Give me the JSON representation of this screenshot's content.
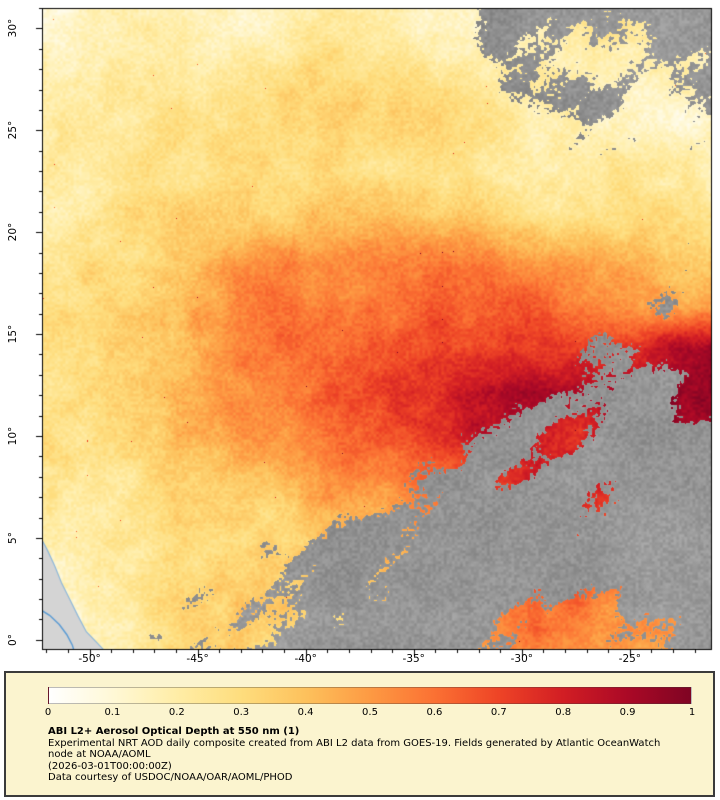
{
  "figure": {
    "lat_ticks": [
      {
        "value": 30,
        "label": "30°"
      },
      {
        "value": 25,
        "label": "25°"
      },
      {
        "value": 20,
        "label": "20°"
      },
      {
        "value": 15,
        "label": "15°"
      },
      {
        "value": 10,
        "label": "10°"
      },
      {
        "value": 5,
        "label": "5°"
      },
      {
        "value": 0,
        "label": "0°"
      }
    ],
    "lon_ticks": [
      {
        "value": -50,
        "label": "-50°"
      },
      {
        "value": -45,
        "label": "-45°"
      },
      {
        "value": -40,
        "label": "-40°"
      },
      {
        "value": -35,
        "label": "-35°"
      },
      {
        "value": -30,
        "label": "-30°"
      },
      {
        "value": -25,
        "label": "-25°"
      }
    ]
  },
  "legend": {
    "title": "ABI L2+ Aerosol Optical Depth at 550 nm (1)",
    "description": "Experimental NRT AOD daily composite created from ABI L2 data from GOES-19. Fields generated by Atlantic OceanWatch node at NOAA/AOML",
    "timestamp": "(2026-03-01T00:00:00Z)",
    "credit": "Data courtesy of USDOC/NOAA/OAR/AOML/PHOD",
    "colorbar_ticks": [
      "0",
      "0.1",
      "0.2",
      "0.3",
      "0.4",
      "0.5",
      "0.6",
      "0.7",
      "0.8",
      "0.9",
      "1"
    ],
    "panel_bg": "#fbf4cf",
    "panel_border": "#3b3b3b"
  },
  "chart_data": {
    "type": "heatmap",
    "title": "ABI L2+ Aerosol Optical Depth at 550 nm (1)",
    "lon_range": [
      -52.2,
      -21.2
    ],
    "lat_range": [
      -0.5,
      31
    ],
    "lon_tick_values": [
      -50,
      -45,
      -40,
      -35,
      -30,
      -25
    ],
    "lat_tick_values": [
      0,
      5,
      10,
      15,
      20,
      25,
      30
    ],
    "grid_orientation": "rows north-to-south, columns west-to-east",
    "colorbar": {
      "min": 0,
      "max": 1,
      "ticks": [
        0,
        0.1,
        0.2,
        0.3,
        0.4,
        0.5,
        0.6,
        0.7,
        0.8,
        0.9,
        1
      ],
      "stops": [
        {
          "value": 0.0,
          "color": "#ffffff"
        },
        {
          "value": 0.1,
          "color": "#fff8d6"
        },
        {
          "value": 0.2,
          "color": "#ffeda6"
        },
        {
          "value": 0.3,
          "color": "#fedd7d"
        },
        {
          "value": 0.4,
          "color": "#fdc15c"
        },
        {
          "value": 0.5,
          "color": "#fd9a43"
        },
        {
          "value": 0.6,
          "color": "#fb7133"
        },
        {
          "value": 0.7,
          "color": "#ee4426"
        },
        {
          "value": 0.8,
          "color": "#d21e24"
        },
        {
          "value": 0.9,
          "color": "#ab0926"
        },
        {
          "value": 1.0,
          "color": "#7f0423"
        }
      ]
    },
    "missing_color": "#969696",
    "land_color": "#d4d4d4",
    "coastline_color": "#8fb8da",
    "river_color": "#5a9bd4",
    "aod_grid": [
      [
        0.15,
        0.15,
        0.16,
        0.17,
        0.18,
        0.2,
        0.22,
        0.22,
        0.21,
        0.2,
        0.19,
        0.18,
        0.18,
        0.17,
        0.16,
        0.15
      ],
      [
        0.15,
        0.16,
        0.17,
        0.18,
        0.2,
        0.22,
        0.24,
        0.24,
        0.23,
        0.22,
        0.2,
        0.2,
        0.18,
        0.17,
        0.16,
        0.15
      ],
      [
        0.16,
        0.17,
        0.18,
        0.2,
        0.22,
        0.24,
        0.26,
        0.26,
        0.25,
        0.24,
        0.22,
        0.21,
        0.2,
        0.18,
        0.17,
        0.16
      ],
      [
        0.17,
        0.18,
        0.2,
        0.22,
        0.24,
        0.26,
        0.28,
        0.28,
        0.27,
        0.26,
        0.24,
        0.22,
        0.21,
        0.2,
        0.18,
        0.17
      ],
      [
        0.18,
        0.2,
        0.22,
        0.24,
        0.26,
        0.28,
        0.3,
        0.31,
        0.3,
        0.29,
        0.27,
        0.25,
        0.24,
        0.22,
        0.2,
        0.19
      ],
      [
        0.2,
        0.22,
        0.25,
        0.28,
        0.32,
        0.36,
        0.4,
        0.42,
        0.42,
        0.4,
        0.38,
        0.34,
        0.31,
        0.28,
        0.26,
        0.23
      ],
      [
        0.22,
        0.26,
        0.3,
        0.36,
        0.43,
        0.5,
        0.55,
        0.58,
        0.6,
        0.58,
        0.55,
        0.51,
        0.47,
        0.43,
        0.39,
        0.35
      ],
      [
        0.24,
        0.28,
        0.34,
        0.41,
        0.48,
        0.55,
        0.6,
        0.63,
        0.65,
        0.65,
        0.62,
        0.59,
        0.56,
        0.52,
        0.46,
        0.42
      ],
      [
        0.26,
        0.3,
        0.36,
        0.43,
        0.5,
        0.58,
        0.63,
        0.67,
        0.7,
        0.72,
        0.71,
        0.69,
        0.71,
        0.76,
        0.86,
        0.96
      ],
      [
        0.28,
        0.32,
        0.38,
        0.45,
        0.52,
        0.6,
        0.66,
        0.72,
        0.78,
        0.85,
        0.92,
        0.95,
        0.9,
        0.86,
        0.92,
        1.0
      ],
      [
        0.28,
        0.32,
        0.38,
        0.44,
        0.5,
        0.56,
        0.62,
        0.68,
        0.75,
        0.8,
        0.85,
        0.81,
        0.76,
        0.8,
        0.86,
        0.92
      ],
      [
        0.26,
        0.3,
        0.34,
        0.38,
        0.42,
        0.46,
        0.51,
        0.56,
        0.61,
        0.66,
        0.71,
        0.76,
        0.8,
        0.76,
        0.71,
        0.76
      ],
      [
        0.22,
        0.25,
        0.3,
        0.34,
        0.38,
        0.41,
        0.44,
        0.48,
        0.51,
        0.56,
        0.61,
        0.66,
        0.7,
        0.66,
        0.61,
        0.66
      ],
      [
        0.15,
        0.2,
        0.25,
        0.3,
        0.34,
        0.36,
        0.4,
        0.42,
        0.45,
        0.5,
        0.55,
        0.6,
        0.61,
        0.56,
        0.51,
        0.56
      ],
      [
        0.1,
        0.15,
        0.2,
        0.28,
        0.32,
        0.34,
        0.36,
        0.38,
        0.41,
        0.45,
        0.5,
        0.55,
        0.56,
        0.51,
        0.5,
        0.51
      ],
      [
        0.08,
        0.12,
        0.18,
        0.25,
        0.3,
        0.32,
        0.34,
        0.36,
        0.38,
        0.42,
        0.48,
        0.52,
        0.51,
        0.48,
        0.47,
        0.45
      ]
    ],
    "cloud_fraction_grid": [
      [
        0.1,
        0.05,
        0.05,
        0.1,
        0.25,
        0.3,
        0.2,
        0.15,
        0.2,
        0.3,
        0.45,
        0.55,
        0.6,
        0.68,
        0.75,
        0.8
      ],
      [
        0.05,
        0.05,
        0.05,
        0.1,
        0.2,
        0.25,
        0.15,
        0.1,
        0.15,
        0.25,
        0.4,
        0.5,
        0.55,
        0.62,
        0.68,
        0.72
      ],
      [
        0.05,
        0.05,
        0.05,
        0.05,
        0.1,
        0.15,
        0.1,
        0.1,
        0.1,
        0.2,
        0.3,
        0.4,
        0.5,
        0.55,
        0.6,
        0.62
      ],
      [
        0.05,
        0.0,
        0.0,
        0.05,
        0.05,
        0.1,
        0.05,
        0.05,
        0.1,
        0.15,
        0.25,
        0.3,
        0.4,
        0.5,
        0.55,
        0.52
      ],
      [
        0.0,
        0.0,
        0.0,
        0.0,
        0.05,
        0.05,
        0.05,
        0.05,
        0.05,
        0.1,
        0.15,
        0.2,
        0.3,
        0.4,
        0.45,
        0.42
      ],
      [
        0.0,
        0.0,
        0.0,
        0.0,
        0.0,
        0.0,
        0.05,
        0.05,
        0.05,
        0.05,
        0.1,
        0.15,
        0.2,
        0.25,
        0.32,
        0.36
      ],
      [
        0.0,
        0.0,
        0.0,
        0.0,
        0.0,
        0.0,
        0.0,
        0.05,
        0.05,
        0.05,
        0.05,
        0.1,
        0.15,
        0.2,
        0.32,
        0.36
      ],
      [
        0.0,
        0.0,
        0.0,
        0.0,
        0.0,
        0.0,
        0.0,
        0.0,
        0.05,
        0.05,
        0.05,
        0.1,
        0.15,
        0.26,
        0.46,
        0.4
      ],
      [
        0.0,
        0.0,
        0.0,
        0.0,
        0.0,
        0.0,
        0.0,
        0.05,
        0.05,
        0.1,
        0.15,
        0.2,
        0.3,
        0.46,
        0.5,
        0.34
      ],
      [
        0.05,
        0.0,
        0.0,
        0.0,
        0.0,
        0.0,
        0.05,
        0.05,
        0.1,
        0.15,
        0.25,
        0.35,
        0.45,
        0.55,
        0.5,
        0.4
      ],
      [
        0.05,
        0.05,
        0.05,
        0.05,
        0.05,
        0.05,
        0.1,
        0.15,
        0.2,
        0.3,
        0.45,
        0.55,
        0.6,
        0.6,
        0.55,
        0.5
      ],
      [
        0.1,
        0.05,
        0.05,
        0.1,
        0.1,
        0.15,
        0.2,
        0.3,
        0.4,
        0.5,
        0.6,
        0.65,
        0.6,
        0.66,
        0.7,
        0.6
      ],
      [
        0.2,
        0.1,
        0.1,
        0.15,
        0.2,
        0.3,
        0.4,
        0.5,
        0.55,
        0.65,
        0.7,
        0.7,
        0.65,
        0.7,
        0.76,
        0.7
      ],
      [
        0.3,
        0.2,
        0.2,
        0.25,
        0.35,
        0.45,
        0.55,
        0.6,
        0.66,
        0.75,
        0.76,
        0.7,
        0.66,
        0.76,
        0.8,
        0.76
      ],
      [
        0.3,
        0.3,
        0.3,
        0.35,
        0.45,
        0.55,
        0.6,
        0.66,
        0.7,
        0.75,
        0.66,
        0.5,
        0.42,
        0.55,
        0.7,
        0.72
      ],
      [
        0.2,
        0.35,
        0.4,
        0.45,
        0.55,
        0.6,
        0.66,
        0.7,
        0.7,
        0.68,
        0.45,
        0.3,
        0.3,
        0.42,
        0.62,
        0.72
      ]
    ],
    "land_polygon": [
      [
        -52.3,
        5.1
      ],
      [
        -51.95,
        4.4
      ],
      [
        -51.6,
        3.6
      ],
      [
        -51.3,
        2.8
      ],
      [
        -50.9,
        1.95
      ],
      [
        -50.55,
        1.2
      ],
      [
        -50.15,
        0.4
      ],
      [
        -49.65,
        -0.15
      ],
      [
        -49.25,
        -0.6
      ],
      [
        -52.3,
        -0.6
      ]
    ],
    "river_line": [
      [
        -52.3,
        1.5
      ],
      [
        -51.85,
        1.2
      ],
      [
        -51.4,
        0.75
      ],
      [
        -51.05,
        0.25
      ],
      [
        -50.8,
        -0.25
      ],
      [
        -50.7,
        -0.6
      ]
    ]
  }
}
